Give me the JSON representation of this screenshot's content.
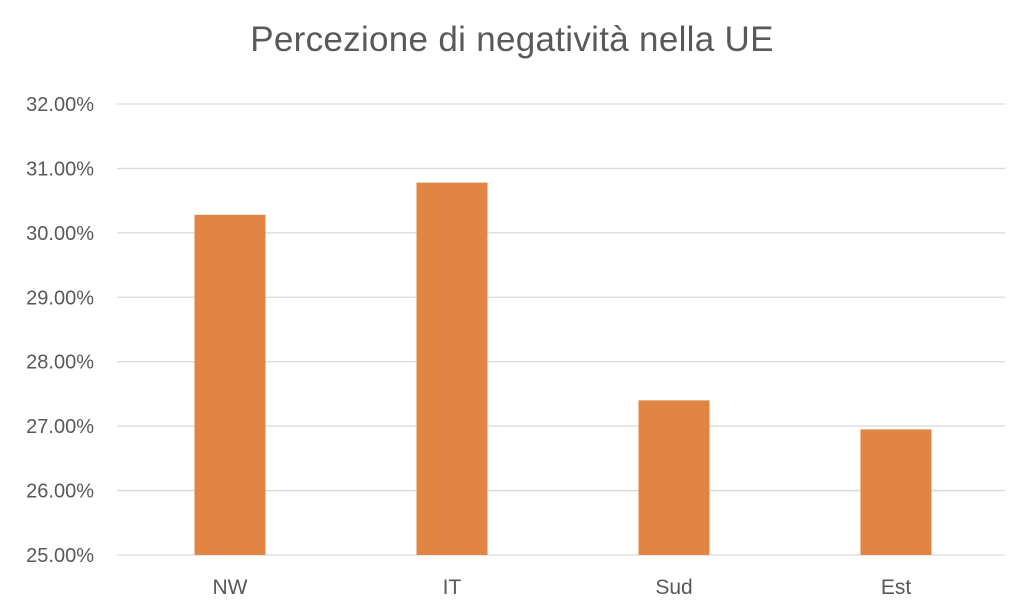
{
  "chart_data": {
    "type": "bar",
    "title": "Percezione di negatività nella UE",
    "xlabel": "",
    "ylabel": "",
    "categories": [
      "NW",
      "IT",
      "Sud",
      "Est"
    ],
    "values": [
      0.3028,
      0.3078,
      0.274,
      0.2695
    ],
    "ylim": [
      0.25,
      0.32
    ],
    "yticks": [
      0.25,
      0.26,
      0.27,
      0.28,
      0.29,
      0.3,
      0.31,
      0.32
    ],
    "ytick_labels": [
      "25.00%",
      "26.00%",
      "27.00%",
      "28.00%",
      "29.00%",
      "30.00%",
      "31.00%",
      "32.00%"
    ],
    "grid": true,
    "legend": "none",
    "bar_color": "#e08543"
  }
}
